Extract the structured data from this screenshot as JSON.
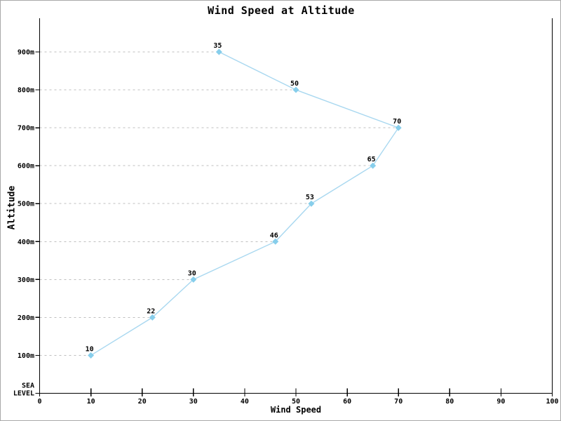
{
  "page": {
    "background": "#ffffff",
    "border_color": "#a9a9a9"
  },
  "chart_data": {
    "type": "line",
    "title": "Wind Speed at Altitude",
    "xlabel": "Wind Speed",
    "ylabel": "Altitude",
    "xlim": [
      0,
      100
    ],
    "x_ticks": [
      0,
      10,
      20,
      30,
      40,
      50,
      60,
      70,
      80,
      90,
      100
    ],
    "y_ticks": [
      {
        "value": 900,
        "label": "900m"
      },
      {
        "value": 800,
        "label": "800m"
      },
      {
        "value": 700,
        "label": "700m"
      },
      {
        "value": 600,
        "label": "600m"
      },
      {
        "value": 500,
        "label": "500m"
      },
      {
        "value": 400,
        "label": "400m"
      },
      {
        "value": 300,
        "label": "300m"
      },
      {
        "value": 200,
        "label": "200m"
      },
      {
        "value": 100,
        "label": "100m"
      },
      {
        "value": 0,
        "label": "SEA LEVEL",
        "label_lines": [
          "SEA",
          "LEVEL"
        ]
      }
    ],
    "points": [
      {
        "altitude_m": 100,
        "wind_speed": 10,
        "label": "10"
      },
      {
        "altitude_m": 200,
        "wind_speed": 22,
        "label": "22"
      },
      {
        "altitude_m": 300,
        "wind_speed": 30,
        "label": "30"
      },
      {
        "altitude_m": 400,
        "wind_speed": 46,
        "label": "46"
      },
      {
        "altitude_m": 500,
        "wind_speed": 53,
        "label": "53"
      },
      {
        "altitude_m": 600,
        "wind_speed": 65,
        "label": "65"
      },
      {
        "altitude_m": 700,
        "wind_speed": 70,
        "label": "70"
      },
      {
        "altitude_m": 800,
        "wind_speed": 50,
        "label": "50"
      },
      {
        "altitude_m": 900,
        "wind_speed": 35,
        "label": "35"
      }
    ],
    "colors": {
      "line": "#a9d8f0",
      "marker": "#87ceeb",
      "grid": "#bfbfbf",
      "axis": "#000000",
      "text": "#000000"
    },
    "grid_style": "dashed horizontal lines, from y-axis to each data point only",
    "legend": "none",
    "marker_shape": "diamond"
  }
}
